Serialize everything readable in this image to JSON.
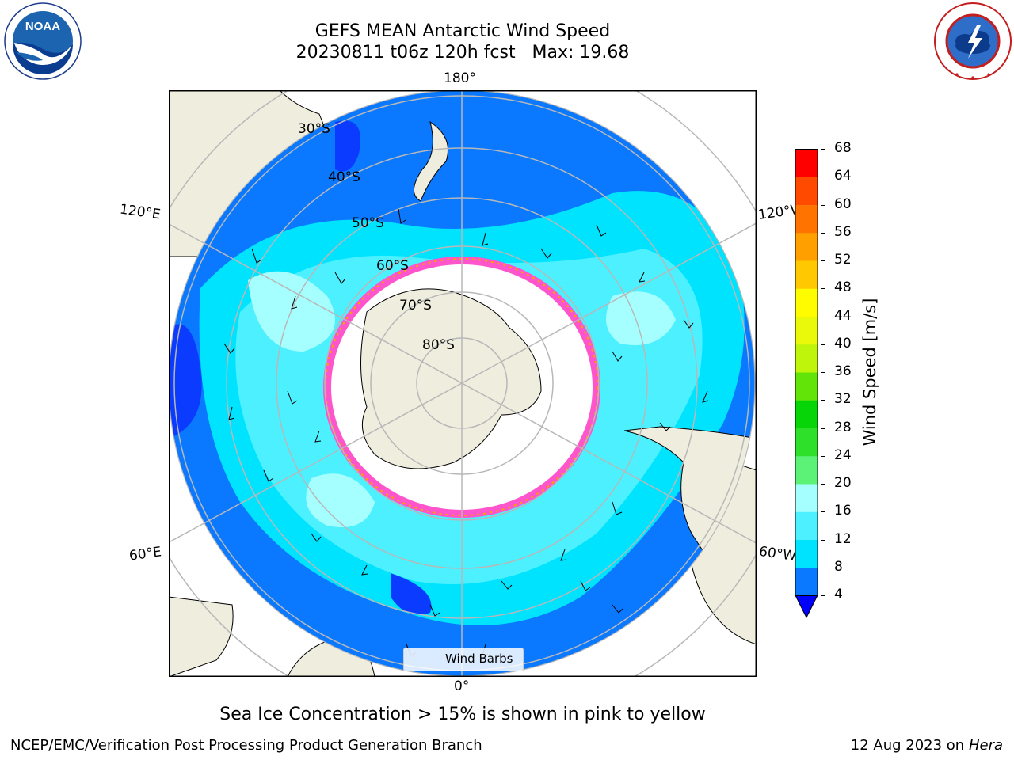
{
  "title": {
    "line1": "GEFS MEAN Antarctic Wind Speed",
    "line2": "20230811 t06z 120h fcst   Max: 19.68"
  },
  "logos": {
    "left_icon": "noaa-logo",
    "left_text": "NOAA",
    "left_ring_text": "NATIONAL OCEANIC AND ATMOSPHERIC ADMINISTRATION",
    "left_ring_bottom": "U.S. DEPARTMENT OF COMMERCE",
    "right_icon": "nws-logo",
    "right_ring_text": "NATIONAL WEATHER SERVICE"
  },
  "map": {
    "projection": "south-polar-stereographic",
    "longitude_labels": {
      "top": "180°",
      "bottom": "0°",
      "upper_left": "120°E",
      "lower_left": "60°E",
      "upper_right": "120°W",
      "lower_right": "60°W"
    },
    "latitude_labels": [
      "30°S",
      "40°S",
      "50°S",
      "60°S",
      "70°S",
      "80°S"
    ],
    "legend_label": "Wind Barbs"
  },
  "colorbar": {
    "label": "Wind Speed [m/s]",
    "ticks": [
      "4",
      "8",
      "12",
      "16",
      "20",
      "24",
      "28",
      "32",
      "36",
      "40",
      "44",
      "48",
      "52",
      "56",
      "60",
      "64",
      "68"
    ],
    "colors": [
      "#0a3bff",
      "#0a78ff",
      "#00e3ff",
      "#4cf0ff",
      "#a6ffff",
      "#5cf278",
      "#2fe02a",
      "#08d508",
      "#63e408",
      "#bff50a",
      "#eaf90a",
      "#fffc00",
      "#ffc800",
      "#ffa000",
      "#ff7400",
      "#ff4a00",
      "#ff0000"
    ],
    "extend_color": "#0000ff"
  },
  "footnote": "Sea Ice Concentration > 15% is shown in pink to yellow",
  "footer": {
    "left": "NCEP/EMC/Verification Post Processing Product Generation Branch",
    "right_date": "12 Aug 2023 on",
    "right_host": "Hera"
  }
}
